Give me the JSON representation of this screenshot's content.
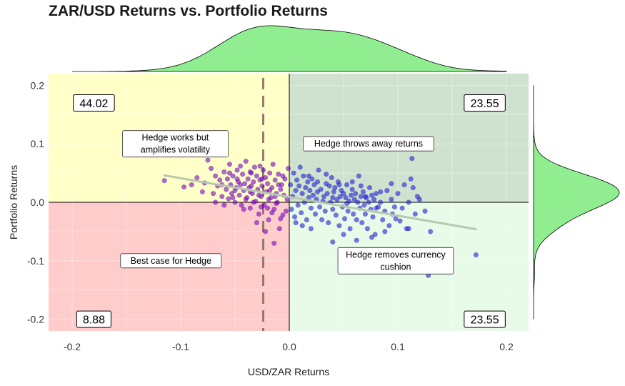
{
  "chart_data": {
    "type": "scatter",
    "title": "ZAR/USD Returns vs. Portfolio Returns",
    "xlabel": "USD/ZAR Returns",
    "ylabel": "Portfolio Returns",
    "xlim": [
      -0.22,
      0.22
    ],
    "ylim": [
      -0.22,
      0.22
    ],
    "x_ticks": [
      -0.2,
      -0.1,
      0.0,
      0.1,
      0.2
    ],
    "x_tick_labels": [
      "-0.2",
      "-0.1",
      "0.0",
      "0.1",
      "0.2"
    ],
    "y_ticks": [
      -0.2,
      -0.1,
      0.0,
      0.1,
      0.2
    ],
    "y_tick_labels": [
      "-0.2",
      "-0.1",
      "0.0",
      "0.1",
      "0.2"
    ],
    "grid": true,
    "quadrant_colors": {
      "top_left": "#ffffc8",
      "top_right": "#cfe2cf",
      "bottom_left": "#ffcccc",
      "bottom_right": "#e8fae8"
    },
    "point_color_negative_x": "#8000c0",
    "point_color_positive_x": "#2020e0",
    "trend_line": {
      "x": [
        -0.115,
        0.172
      ],
      "y": [
        0.046,
        -0.046
      ],
      "color": "#b8c8b0"
    },
    "mean_line": {
      "x": -0.024,
      "color": "#8c6e64"
    },
    "density_color": "#90ee90",
    "annotations": [
      {
        "label": "Hedge works but\namplifies volatility",
        "x": -0.105,
        "y": 0.1
      },
      {
        "label": "Hedge throws away returns",
        "x": 0.073,
        "y": 0.1
      },
      {
        "label": "Best case for Hedge",
        "x": -0.109,
        "y": -0.1
      },
      {
        "label": "Hedge removes currency\ncushion",
        "x": 0.098,
        "y": -0.1
      }
    ],
    "quadrant_counts": [
      {
        "label": "44.02",
        "x": -0.18,
        "y": 0.17
      },
      {
        "label": "23.55",
        "x": 0.18,
        "y": 0.17
      },
      {
        "label": "8.88",
        "x": -0.18,
        "y": -0.2
      },
      {
        "label": "23.55",
        "x": 0.18,
        "y": -0.2
      }
    ],
    "points": [
      [
        -0.115,
        0.037
      ],
      [
        -0.097,
        0.026
      ],
      [
        -0.09,
        0.03
      ],
      [
        -0.085,
        0.042
      ],
      [
        -0.08,
        0.018
      ],
      [
        -0.078,
        0.033
      ],
      [
        -0.075,
        0.072
      ],
      [
        -0.072,
        0.058
      ],
      [
        -0.07,
        0.015
      ],
      [
        -0.068,
        0.045
      ],
      [
        -0.066,
        0.028
      ],
      [
        -0.064,
        0.038
      ],
      [
        -0.062,
        0.01
      ],
      [
        -0.06,
        0.052
      ],
      [
        -0.058,
        0.022
      ],
      [
        -0.057,
        0.04
      ],
      [
        -0.056,
        0.006
      ],
      [
        -0.055,
        0.065
      ],
      [
        -0.054,
        0.03
      ],
      [
        -0.053,
        0.015
      ],
      [
        -0.052,
        0.045
      ],
      [
        -0.05,
        0.0
      ],
      [
        -0.049,
        0.025
      ],
      [
        -0.048,
        0.055
      ],
      [
        -0.047,
        0.035
      ],
      [
        -0.046,
        0.012
      ],
      [
        -0.045,
        0.062
      ],
      [
        -0.044,
        -0.005
      ],
      [
        -0.043,
        0.048
      ],
      [
        -0.042,
        0.02
      ],
      [
        -0.041,
        0.032
      ],
      [
        -0.04,
        0.07
      ],
      [
        -0.039,
        0.008
      ],
      [
        -0.038,
        0.04
      ],
      [
        -0.037,
        0.025
      ],
      [
        -0.036,
        -0.01
      ],
      [
        -0.035,
        0.05
      ],
      [
        -0.034,
        0.015
      ],
      [
        -0.033,
        0.035
      ],
      [
        -0.032,
        0.06
      ],
      [
        -0.031,
        0.002
      ],
      [
        -0.03,
        0.045
      ],
      [
        -0.029,
        0.022
      ],
      [
        -0.028,
        -0.02
      ],
      [
        -0.027,
        0.038
      ],
      [
        -0.026,
        0.01
      ],
      [
        -0.025,
        0.028
      ],
      [
        -0.024,
        0.055
      ],
      [
        -0.023,
        -0.005
      ],
      [
        -0.022,
        0.042
      ],
      [
        -0.021,
        0.018
      ],
      [
        -0.02,
        0.032
      ],
      [
        -0.019,
        -0.03
      ],
      [
        -0.018,
        0.05
      ],
      [
        -0.017,
        0.008
      ],
      [
        -0.016,
        0.025
      ],
      [
        -0.015,
        0.065
      ],
      [
        -0.014,
        -0.012
      ],
      [
        -0.013,
        0.038
      ],
      [
        -0.012,
        0.015
      ],
      [
        -0.011,
        0.0
      ],
      [
        -0.01,
        0.048
      ],
      [
        -0.009,
        -0.045
      ],
      [
        -0.008,
        0.022
      ],
      [
        -0.007,
        0.03
      ],
      [
        -0.006,
        -0.022
      ],
      [
        -0.005,
        0.012
      ],
      [
        -0.004,
        0.04
      ],
      [
        -0.003,
        -0.015
      ],
      [
        -0.002,
        0.005
      ],
      [
        -0.001,
        0.058
      ],
      [
        -0.05,
        0.02
      ],
      [
        -0.045,
        0.03
      ],
      [
        -0.036,
        0.018
      ],
      [
        -0.028,
        0.012
      ],
      [
        -0.019,
        0.005
      ],
      [
        -0.012,
        -0.002
      ],
      [
        -0.033,
        0.0
      ],
      [
        -0.026,
        -0.008
      ],
      [
        -0.016,
        -0.018
      ],
      [
        -0.042,
        -0.012
      ],
      [
        -0.03,
        -0.035
      ],
      [
        -0.022,
        -0.05
      ],
      [
        -0.014,
        -0.07
      ],
      [
        -0.008,
        -0.028
      ],
      [
        -0.06,
        -0.005
      ],
      [
        -0.068,
        0.0
      ],
      [
        -0.052,
        0.008
      ],
      [
        -0.04,
        0.005
      ],
      [
        -0.035,
        0.028
      ],
      [
        -0.025,
        0.04
      ],
      [
        -0.018,
        0.02
      ],
      [
        -0.01,
        0.03
      ],
      [
        -0.006,
        0.045
      ],
      [
        -0.048,
        0.04
      ],
      [
        -0.055,
        0.05
      ],
      [
        -0.062,
        0.03
      ],
      [
        -0.036,
        0.052
      ],
      [
        -0.027,
        0.062
      ],
      [
        -0.02,
        -0.01
      ],
      [
        -0.013,
        0.01
      ],
      [
        0.001,
        0.03
      ],
      [
        0.002,
        -0.012
      ],
      [
        0.003,
        0.01
      ],
      [
        0.004,
        0.05
      ],
      [
        0.005,
        -0.025
      ],
      [
        0.006,
        0.02
      ],
      [
        0.007,
        0.038
      ],
      [
        0.008,
        -0.005
      ],
      [
        0.009,
        0.028
      ],
      [
        0.01,
        0.06
      ],
      [
        0.011,
        -0.018
      ],
      [
        0.012,
        0.015
      ],
      [
        0.013,
        0.045
      ],
      [
        0.014,
        0.0
      ],
      [
        0.015,
        0.025
      ],
      [
        0.016,
        -0.03
      ],
      [
        0.017,
        0.035
      ],
      [
        0.018,
        0.008
      ],
      [
        0.019,
        0.02
      ],
      [
        0.02,
        -0.01
      ],
      [
        0.021,
        0.04
      ],
      [
        0.022,
        0.012
      ],
      [
        0.023,
        0.03
      ],
      [
        0.024,
        -0.02
      ],
      [
        0.025,
        0.005
      ],
      [
        0.026,
        0.018
      ],
      [
        0.027,
        0.055
      ],
      [
        0.028,
        -0.008
      ],
      [
        0.029,
        0.022
      ],
      [
        0.03,
        0.095
      ],
      [
        0.031,
        0.002
      ],
      [
        0.032,
        0.01
      ],
      [
        0.033,
        -0.015
      ],
      [
        0.034,
        0.032
      ],
      [
        0.035,
        0.015
      ],
      [
        0.036,
        -0.035
      ],
      [
        0.037,
        0.028
      ],
      [
        0.038,
        0.0
      ],
      [
        0.039,
        0.042
      ],
      [
        0.04,
        -0.012
      ],
      [
        0.041,
        0.018
      ],
      [
        0.042,
        0.025
      ],
      [
        0.043,
        -0.022
      ],
      [
        0.044,
        0.005
      ],
      [
        0.045,
        0.035
      ],
      [
        0.046,
        -0.04
      ],
      [
        0.047,
        0.01
      ],
      [
        0.048,
        0.02
      ],
      [
        0.049,
        -0.008
      ],
      [
        0.05,
        0.015
      ],
      [
        0.051,
        -0.028
      ],
      [
        0.052,
        0.008
      ],
      [
        0.053,
        0.03
      ],
      [
        0.054,
        -0.015
      ],
      [
        0.055,
        0.002
      ],
      [
        0.056,
        -0.045
      ],
      [
        0.057,
        0.012
      ],
      [
        0.058,
        0.022
      ],
      [
        0.059,
        -0.02
      ],
      [
        0.06,
        0.005
      ],
      [
        0.061,
        0.015
      ],
      [
        0.062,
        -0.03
      ],
      [
        0.063,
        0.0
      ],
      [
        0.064,
        0.045
      ],
      [
        0.065,
        -0.01
      ],
      [
        0.066,
        0.01
      ],
      [
        0.067,
        -0.035
      ],
      [
        0.068,
        0.018
      ],
      [
        0.069,
        -0.005
      ],
      [
        0.07,
        -0.02
      ],
      [
        0.071,
        0.008
      ],
      [
        0.072,
        -0.045
      ],
      [
        0.073,
        0.0
      ],
      [
        0.074,
        0.025
      ],
      [
        0.075,
        -0.012
      ],
      [
        0.076,
        0.012
      ],
      [
        0.077,
        -0.025
      ],
      [
        0.078,
        0.005
      ],
      [
        0.079,
        -0.055
      ],
      [
        0.08,
        0.015
      ],
      [
        0.082,
        -0.008
      ],
      [
        0.084,
        0.0
      ],
      [
        0.086,
        -0.03
      ],
      [
        0.088,
        -0.015
      ],
      [
        0.09,
        0.02
      ],
      [
        0.092,
        -0.04
      ],
      [
        0.094,
        0.005
      ],
      [
        0.095,
        -0.02
      ],
      [
        0.097,
        -0.008
      ],
      [
        0.1,
        0.015
      ],
      [
        0.102,
        -0.032
      ],
      [
        0.104,
        -0.01
      ],
      [
        0.106,
        0.03
      ],
      [
        0.108,
        -0.045
      ],
      [
        0.11,
        0.0
      ],
      [
        0.112,
        0.04
      ],
      [
        0.114,
        0.025
      ],
      [
        0.116,
        -0.02
      ],
      [
        0.113,
        0.075
      ],
      [
        0.12,
        0.005
      ],
      [
        0.125,
        -0.015
      ],
      [
        0.128,
        -0.125
      ],
      [
        0.13,
        -0.05
      ],
      [
        0.11,
        -0.045
      ],
      [
        0.098,
        -0.028
      ],
      [
        0.088,
        -0.05
      ],
      [
        0.076,
        -0.06
      ],
      [
        0.062,
        -0.065
      ],
      [
        0.05,
        -0.055
      ],
      [
        0.04,
        -0.068
      ],
      [
        0.03,
        -0.03
      ],
      [
        0.02,
        -0.045
      ],
      [
        0.012,
        -0.04
      ],
      [
        0.006,
        -0.035
      ],
      [
        0.046,
        0.03
      ],
      [
        0.058,
        0.035
      ],
      [
        0.066,
        0.028
      ],
      [
        0.084,
        0.018
      ],
      [
        0.094,
        0.032
      ],
      [
        0.118,
        0.01
      ],
      [
        0.172,
        -0.09
      ],
      [
        0.018,
        0.045
      ],
      [
        0.026,
        0.035
      ],
      [
        0.034,
        0.048
      ],
      [
        0.04,
        0.008
      ],
      [
        0.053,
        -0.002
      ],
      [
        0.07,
        0.01
      ],
      [
        0.08,
        -0.01
      ]
    ]
  }
}
